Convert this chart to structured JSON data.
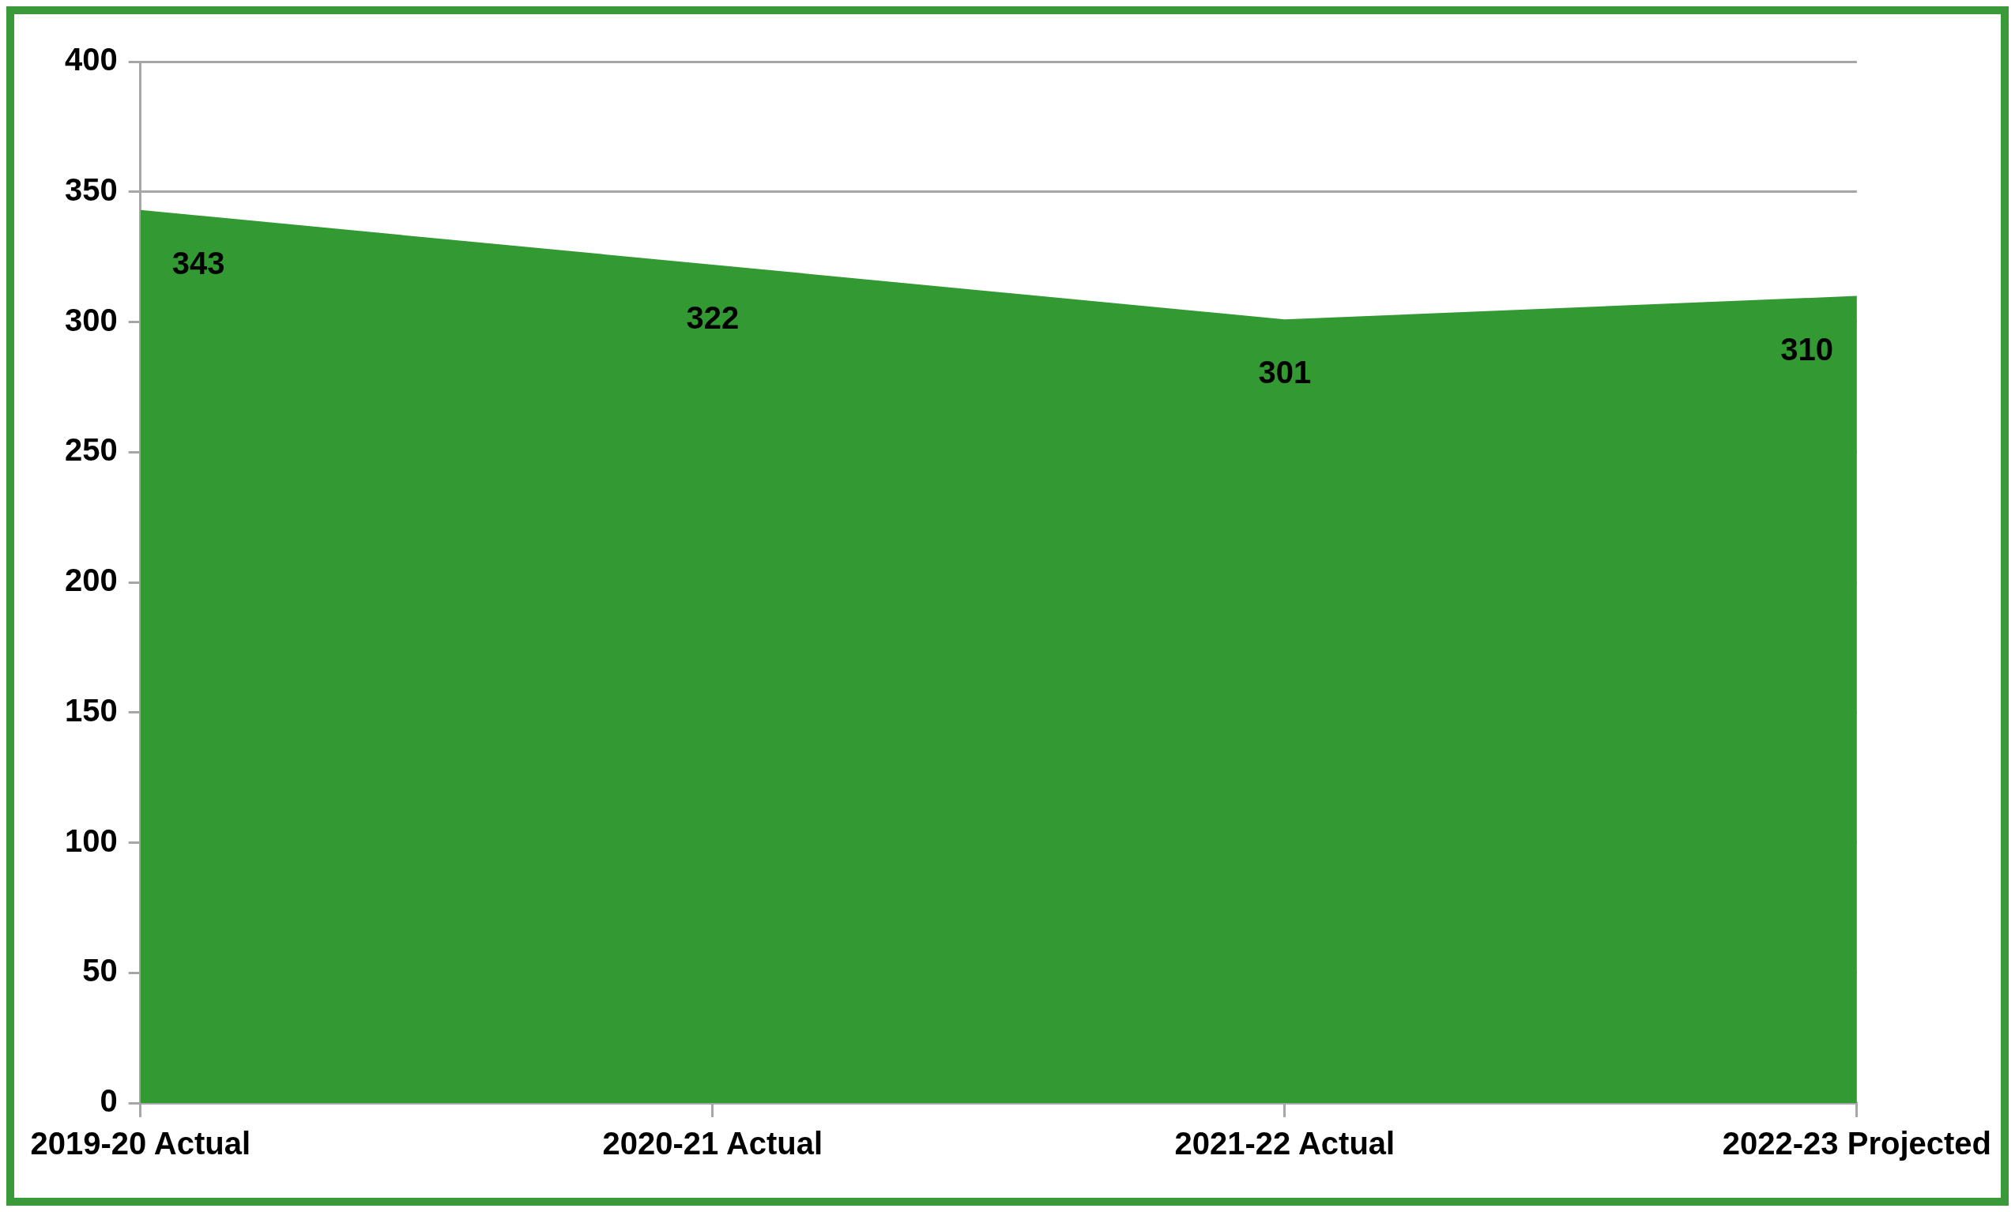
{
  "chart_data": {
    "type": "area",
    "categories": [
      "2019-20 Actual",
      "2020-21 Actual",
      "2021-22 Actual",
      "2022-23 Projected"
    ],
    "values": [
      343,
      322,
      301,
      310
    ],
    "color": "#339933",
    "ylim": [
      0,
      400
    ],
    "yticks": [
      0,
      50,
      100,
      150,
      200,
      250,
      300,
      350,
      400
    ],
    "grid": "y",
    "data_labels": true,
    "legend": false
  }
}
